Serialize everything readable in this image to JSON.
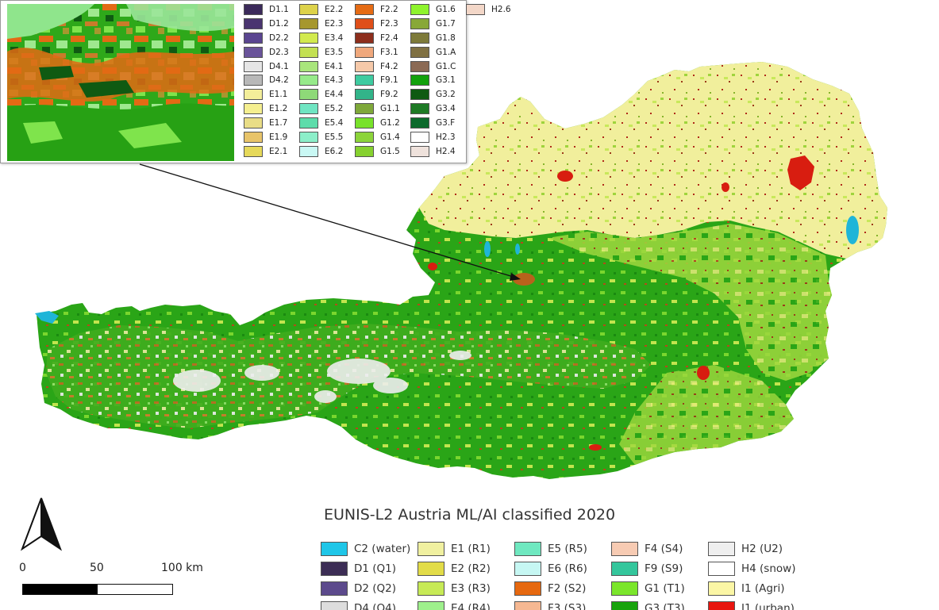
{
  "legend": {
    "title": "EUNIS-L2 Austria ML/AI classified 2020",
    "items": [
      {
        "label": "C2 (water)",
        "color": "#1fc6e8"
      },
      {
        "label": "D1 (Q1)",
        "color": "#3c2d55"
      },
      {
        "label": "D2 (Q2)",
        "color": "#5c4a8c"
      },
      {
        "label": "D4 (Q4)",
        "color": "#dddddd"
      },
      {
        "label": "E1 (R1)",
        "color": "#f0f0a0"
      },
      {
        "label": "E2 (R2)",
        "color": "#e2dc48"
      },
      {
        "label": "E3 (R3)",
        "color": "#c7ea56"
      },
      {
        "label": "E4 (R4)",
        "color": "#9ef08c"
      },
      {
        "label": "E5 (R5)",
        "color": "#6fe8c0"
      },
      {
        "label": "E6 (R6)",
        "color": "#c6f7f3"
      },
      {
        "label": "F2 (S2)",
        "color": "#e6680f"
      },
      {
        "label": "F3 (S3)",
        "color": "#f6b892"
      },
      {
        "label": "F4 (S4)",
        "color": "#f7cbb3"
      },
      {
        "label": "F9 (S9)",
        "color": "#34c69c"
      },
      {
        "label": "G1 (T1)",
        "color": "#7be62b"
      },
      {
        "label": "G3 (T3)",
        "color": "#18a30d"
      },
      {
        "label": "H2 (U2)",
        "color": "#efefef"
      },
      {
        "label": "H4 (snow)",
        "color": "#ffffff"
      },
      {
        "label": "I1 (Agri)",
        "color": "#fbf6a5"
      },
      {
        "label": "I1 (urban)",
        "color": "#e8150f"
      }
    ]
  },
  "inset_legend": [
    {
      "label": "D1.1",
      "color": "#3b2a5a"
    },
    {
      "label": "D1.2",
      "color": "#4a3570"
    },
    {
      "label": "D2.2",
      "color": "#5a4590"
    },
    {
      "label": "D2.3",
      "color": "#6a549a"
    },
    {
      "label": "D4.1",
      "color": "#e6e6e6"
    },
    {
      "label": "D4.2",
      "color": "#b8b8b8"
    },
    {
      "label": "E1.1",
      "color": "#f3ee9a"
    },
    {
      "label": "E1.2",
      "color": "#f5ef90"
    },
    {
      "label": "E1.7",
      "color": "#e9dd86"
    },
    {
      "label": "E1.9",
      "color": "#e8c46a"
    },
    {
      "label": "E2.1",
      "color": "#e6d95a"
    },
    {
      "label": "E2.2",
      "color": "#ddd24a"
    },
    {
      "label": "E2.3",
      "color": "#a6972e"
    },
    {
      "label": "E3.4",
      "color": "#d2ea4e"
    },
    {
      "label": "E3.5",
      "color": "#c3e052"
    },
    {
      "label": "E4.1",
      "color": "#a9e57c"
    },
    {
      "label": "E4.3",
      "color": "#96ea8a"
    },
    {
      "label": "E4.4",
      "color": "#8ed978"
    },
    {
      "label": "E5.2",
      "color": "#6fe5c2"
    },
    {
      "label": "E5.4",
      "color": "#5ddcaa"
    },
    {
      "label": "E5.5",
      "color": "#8ceec9"
    },
    {
      "label": "E6.2",
      "color": "#c9f8f4"
    },
    {
      "label": "F2.2",
      "color": "#e56b14"
    },
    {
      "label": "F2.3",
      "color": "#df4f19"
    },
    {
      "label": "F2.4",
      "color": "#8d2e1c"
    },
    {
      "label": "F3.1",
      "color": "#f0a87c"
    },
    {
      "label": "F4.2",
      "color": "#f6c9a9"
    },
    {
      "label": "F9.1",
      "color": "#3ecba0"
    },
    {
      "label": "F9.2",
      "color": "#32b489"
    },
    {
      "label": "G1.1",
      "color": "#7fa83a"
    },
    {
      "label": "G1.2",
      "color": "#78e22a"
    },
    {
      "label": "G1.4",
      "color": "#8cd43a"
    },
    {
      "label": "G1.5",
      "color": "#86d12f"
    },
    {
      "label": "G1.6",
      "color": "#8ef32c"
    },
    {
      "label": "G1.7",
      "color": "#88a838"
    },
    {
      "label": "G1.8",
      "color": "#7d7a3a"
    },
    {
      "label": "G1.A",
      "color": "#7f7042"
    },
    {
      "label": "G1.C",
      "color": "#8b6a55"
    },
    {
      "label": "G3.1",
      "color": "#12a10c"
    },
    {
      "label": "G3.2",
      "color": "#0f5a12"
    },
    {
      "label": "G3.4",
      "color": "#1e7a25"
    },
    {
      "label": "G3.F",
      "color": "#0c6a2c"
    },
    {
      "label": "H2.3",
      "color": "#ffffff"
    },
    {
      "label": "H2.4",
      "color": "#efe2dc"
    },
    {
      "label": "H2.6",
      "color": "#f3d7c8"
    }
  ],
  "scale": {
    "labels": [
      "0",
      "50",
      "100 km"
    ]
  },
  "north_arrow": {
    "icon": "north-arrow-icon"
  }
}
